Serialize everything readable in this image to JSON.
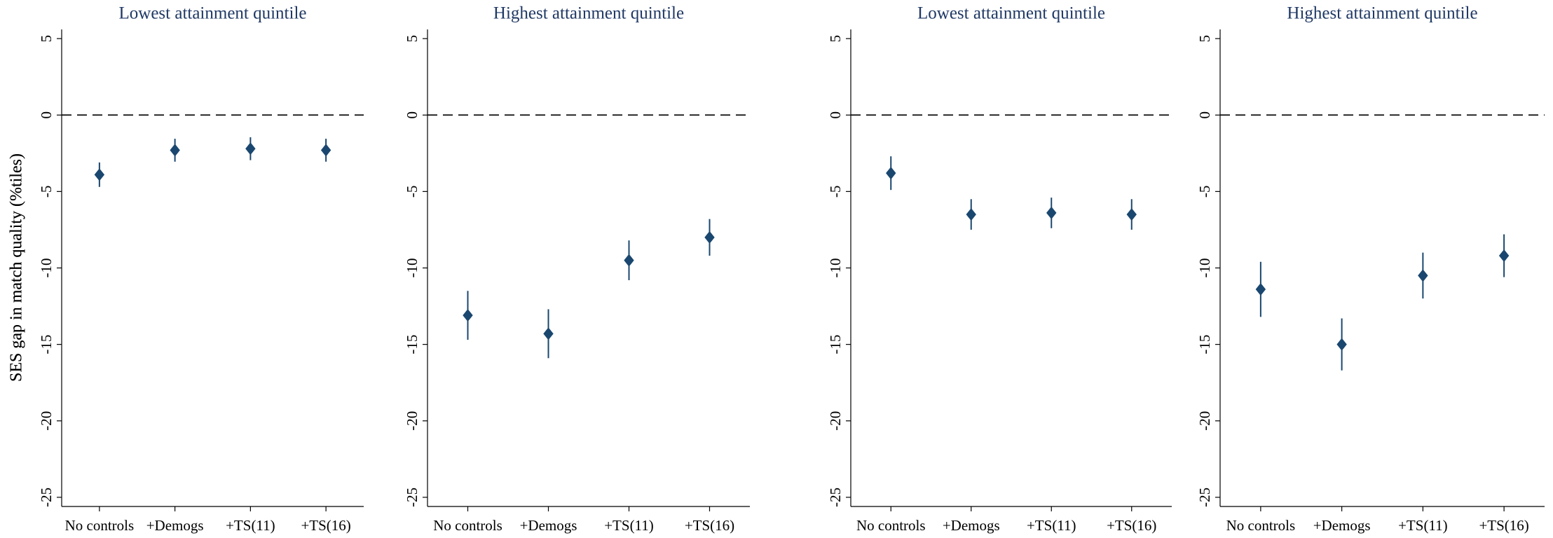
{
  "chart_data": [
    {
      "type": "errorbar",
      "title": "Lowest attainment quintile",
      "ylabel": "SES gap in match quality (%tiles)",
      "categories": [
        "No controls",
        "+Demogs",
        "+TS(11)",
        "+TS(16)"
      ],
      "values": [
        -3.9,
        -2.3,
        -2.2,
        -2.3
      ],
      "errors": [
        0.8,
        0.75,
        0.75,
        0.75
      ],
      "color": "#1a476f",
      "ylim": [
        -25.6,
        5.6
      ],
      "yticks": [
        -25,
        -20,
        -15,
        -10,
        -5,
        0,
        5
      ],
      "refline": 0
    },
    {
      "type": "errorbar",
      "title": "Highest attainment quintile",
      "categories": [
        "No controls",
        "+Demogs",
        "+TS(11)",
        "+TS(16)"
      ],
      "values": [
        -13.1,
        -14.3,
        -9.5,
        -8.0
      ],
      "errors": [
        1.6,
        1.6,
        1.3,
        1.2
      ],
      "color": "#1a476f",
      "ylim": [
        -25.6,
        5.6
      ],
      "yticks": [
        -25,
        -20,
        -15,
        -10,
        -5,
        0,
        5
      ],
      "refline": 0
    },
    {
      "type": "errorbar",
      "title": "Lowest attainment quintile",
      "ylabel": "SES gap in match quality (%tiles)",
      "categories": [
        "No controls",
        "+Demogs",
        "+TS(11)",
        "+TS(16)"
      ],
      "values": [
        -3.8,
        -6.5,
        -6.4,
        -6.5
      ],
      "errors": [
        1.1,
        1.0,
        1.0,
        1.0
      ],
      "color": "#1a476f",
      "ylim": [
        -25.6,
        5.6
      ],
      "yticks": [
        -25,
        -20,
        -15,
        -10,
        -5,
        0,
        5
      ],
      "refline": 0
    },
    {
      "type": "errorbar",
      "title": "Highest attainment quintile",
      "categories": [
        "No controls",
        "+Demogs",
        "+TS(11)",
        "+TS(16)"
      ],
      "values": [
        -11.4,
        -15.0,
        -10.5,
        -9.2
      ],
      "errors": [
        1.8,
        1.7,
        1.5,
        1.4
      ],
      "color": "#1a476f",
      "ylim": [
        -25.6,
        5.6
      ],
      "yticks": [
        -25,
        -20,
        -15,
        -10,
        -5,
        0,
        5
      ],
      "refline": 0
    }
  ]
}
